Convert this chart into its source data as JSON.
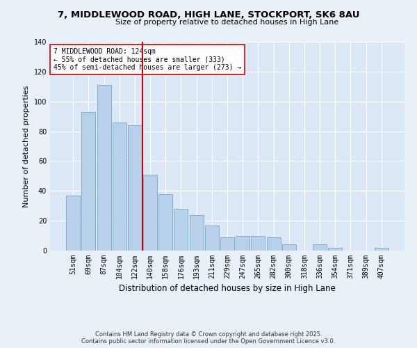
{
  "title": "7, MIDDLEWOOD ROAD, HIGH LANE, STOCKPORT, SK6 8AU",
  "subtitle": "Size of property relative to detached houses in High Lane",
  "xlabel": "Distribution of detached houses by size in High Lane",
  "ylabel": "Number of detached properties",
  "bar_labels": [
    "51sqm",
    "69sqm",
    "87sqm",
    "104sqm",
    "122sqm",
    "140sqm",
    "158sqm",
    "176sqm",
    "193sqm",
    "211sqm",
    "229sqm",
    "247sqm",
    "265sqm",
    "282sqm",
    "300sqm",
    "318sqm",
    "336sqm",
    "354sqm",
    "371sqm",
    "389sqm",
    "407sqm"
  ],
  "bar_heights": [
    37,
    93,
    111,
    86,
    84,
    51,
    38,
    28,
    24,
    17,
    9,
    10,
    10,
    9,
    4,
    0,
    4,
    2,
    0,
    0,
    2
  ],
  "bar_color": "#b8d0ea",
  "bar_edge_color": "#7aafd4",
  "vline_x_index": 4,
  "vline_color": "#cc0000",
  "annotation_title": "7 MIDDLEWOOD ROAD: 124sqm",
  "annotation_line1": "← 55% of detached houses are smaller (333)",
  "annotation_line2": "45% of semi-detached houses are larger (273) →",
  "annotation_box_color": "#ffffff",
  "annotation_box_edge": "#cc0000",
  "ylim": [
    0,
    140
  ],
  "yticks": [
    0,
    20,
    40,
    60,
    80,
    100,
    120,
    140
  ],
  "background_color": "#e8f0f8",
  "plot_bg_color": "#dce8f5",
  "footer1": "Contains HM Land Registry data © Crown copyright and database right 2025.",
  "footer2": "Contains public sector information licensed under the Open Government Licence v3.0."
}
